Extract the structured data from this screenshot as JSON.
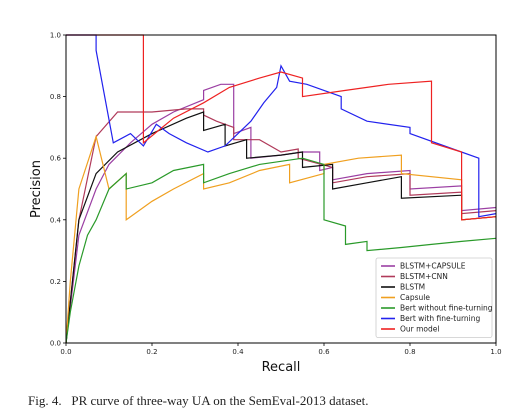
{
  "caption": {
    "label": "Fig. 4.",
    "text": "PR curve of three-way UA on the SemEval-2013 dataset."
  },
  "chart_data": {
    "type": "line",
    "xlabel": "Recall",
    "ylabel": "Precision",
    "xlim": [
      0,
      1
    ],
    "ylim": [
      0,
      1
    ],
    "xticks": [
      "0.0",
      "0.2",
      "0.4",
      "0.6",
      "0.8",
      "1.0"
    ],
    "yticks": [
      "0.0",
      "0.2",
      "0.4",
      "0.6",
      "0.8",
      "1.0"
    ],
    "grid": false,
    "legend_position": "bottom-right",
    "series": [
      {
        "name": "BLSTM+CAPSULE",
        "color": "#9b3fa3",
        "x": [
          0,
          0.03,
          0.07,
          0.07,
          0.1,
          0.15,
          0.2,
          0.25,
          0.32,
          0.32,
          0.36,
          0.39,
          0.39,
          0.43,
          0.43,
          0.5,
          0.55,
          0.59,
          0.59,
          0.62,
          0.62,
          0.7,
          0.8,
          0.8,
          0.92,
          0.92,
          1.0
        ],
        "y": [
          0,
          0.35,
          0.5,
          0.5,
          0.58,
          0.65,
          0.71,
          0.75,
          0.79,
          0.82,
          0.84,
          0.84,
          0.68,
          0.7,
          0.6,
          0.61,
          0.62,
          0.62,
          0.56,
          0.57,
          0.53,
          0.55,
          0.56,
          0.5,
          0.51,
          0.43,
          0.44
        ]
      },
      {
        "name": "BLSTM+CNN",
        "color": "#b03a5a",
        "x": [
          0,
          0.03,
          0.07,
          0.07,
          0.12,
          0.2,
          0.28,
          0.32,
          0.32,
          0.35,
          0.39,
          0.39,
          0.45,
          0.5,
          0.54,
          0.54,
          0.62,
          0.62,
          0.7,
          0.8,
          0.8,
          0.92,
          0.92,
          1.0
        ],
        "y": [
          0,
          0.4,
          0.67,
          0.67,
          0.75,
          0.75,
          0.76,
          0.76,
          0.74,
          0.72,
          0.7,
          0.66,
          0.66,
          0.62,
          0.63,
          0.6,
          0.57,
          0.52,
          0.54,
          0.55,
          0.48,
          0.49,
          0.42,
          0.43
        ]
      },
      {
        "name": "BLSTM",
        "color": "#111111",
        "x": [
          0,
          0.03,
          0.07,
          0.07,
          0.12,
          0.2,
          0.28,
          0.32,
          0.32,
          0.37,
          0.37,
          0.42,
          0.42,
          0.5,
          0.55,
          0.55,
          0.62,
          0.62,
          0.7,
          0.78,
          0.78,
          0.92,
          0.92,
          1.0
        ],
        "y": [
          0,
          0.4,
          0.55,
          0.55,
          0.62,
          0.68,
          0.73,
          0.75,
          0.69,
          0.71,
          0.64,
          0.66,
          0.6,
          0.61,
          0.62,
          0.57,
          0.58,
          0.5,
          0.52,
          0.54,
          0.47,
          0.48,
          0.4,
          0.41
        ]
      },
      {
        "name": "Capsule",
        "color": "#f0a020",
        "x": [
          0,
          0.01,
          0.03,
          0.07,
          0.07,
          0.1,
          0.14,
          0.14,
          0.2,
          0.25,
          0.32,
          0.32,
          0.38,
          0.45,
          0.52,
          0.52,
          0.6,
          0.6,
          0.68,
          0.78,
          0.78,
          0.92,
          0.92,
          1.0
        ],
        "y": [
          0,
          0.2,
          0.5,
          0.67,
          0.67,
          0.5,
          0.55,
          0.4,
          0.46,
          0.5,
          0.55,
          0.5,
          0.52,
          0.56,
          0.58,
          0.52,
          0.55,
          0.58,
          0.6,
          0.61,
          0.55,
          0.53,
          0.4,
          0.41
        ]
      },
      {
        "name": "Bert without fine-turning",
        "color": "#2a9a2a",
        "x": [
          0,
          0.01,
          0.03,
          0.05,
          0.07,
          0.07,
          0.1,
          0.14,
          0.14,
          0.2,
          0.25,
          0.32,
          0.32,
          0.38,
          0.45,
          0.55,
          0.6,
          0.6,
          0.65,
          0.65,
          0.7,
          0.7,
          0.78,
          0.85,
          0.92,
          1.0
        ],
        "y": [
          0,
          0.1,
          0.25,
          0.35,
          0.4,
          0.4,
          0.5,
          0.55,
          0.5,
          0.52,
          0.56,
          0.58,
          0.52,
          0.55,
          0.58,
          0.6,
          0.58,
          0.4,
          0.38,
          0.32,
          0.33,
          0.3,
          0.31,
          0.32,
          0.33,
          0.34
        ]
      },
      {
        "name": "Bert with fine-turning",
        "color": "#2222ee",
        "x": [
          0,
          0.07,
          0.07,
          0.11,
          0.15,
          0.18,
          0.21,
          0.24,
          0.28,
          0.33,
          0.37,
          0.4,
          0.43,
          0.46,
          0.49,
          0.5,
          0.52,
          0.56,
          0.6,
          0.64,
          0.64,
          0.7,
          0.8,
          0.8,
          0.9,
          0.96,
          0.96,
          1.0
        ],
        "y": [
          1.0,
          1.0,
          0.95,
          0.65,
          0.68,
          0.64,
          0.71,
          0.68,
          0.65,
          0.62,
          0.64,
          0.68,
          0.72,
          0.78,
          0.83,
          0.9,
          0.85,
          0.84,
          0.82,
          0.8,
          0.76,
          0.72,
          0.7,
          0.68,
          0.63,
          0.6,
          0.41,
          0.42
        ]
      },
      {
        "name": "Our model",
        "color": "#ee2222",
        "x": [
          0,
          0.07,
          0.07,
          0.18,
          0.18,
          0.25,
          0.32,
          0.38,
          0.45,
          0.5,
          0.55,
          0.55,
          0.65,
          0.75,
          0.85,
          0.85,
          0.92,
          0.92,
          1.0
        ],
        "y": [
          1.0,
          1.0,
          1.0,
          1.0,
          0.65,
          0.73,
          0.78,
          0.83,
          0.86,
          0.88,
          0.86,
          0.8,
          0.82,
          0.84,
          0.85,
          0.65,
          0.62,
          0.4,
          0.41
        ]
      }
    ]
  }
}
